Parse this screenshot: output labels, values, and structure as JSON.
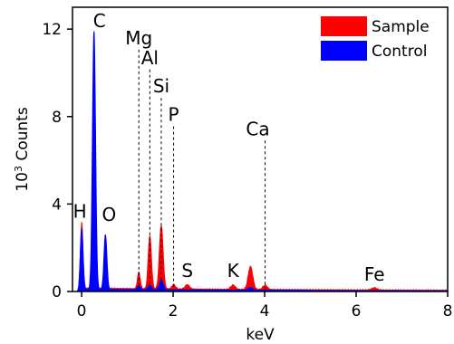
{
  "chart_data": {
    "type": "area",
    "xlabel": "keV",
    "ylabel_base": "10",
    "ylabel_exp": "3",
    "ylabel_rest": " Counts",
    "xlim": [
      -0.2,
      8
    ],
    "ylim": [
      0,
      13
    ],
    "x_ticks": [
      0,
      2,
      4,
      6,
      8
    ],
    "y_ticks": [
      0,
      4,
      8,
      12
    ],
    "grid": false,
    "legend_position": "top-right",
    "series": [
      {
        "name": "Sample",
        "color": "#ff0000",
        "peaks": [
          {
            "x": 0.0,
            "y": 3.0,
            "w": 0.028
          },
          {
            "x": 0.27,
            "y": 0.9,
            "w": 0.03
          },
          {
            "x": 0.52,
            "y": 1.3,
            "w": 0.03
          },
          {
            "x": 1.25,
            "y": 0.75,
            "w": 0.03
          },
          {
            "x": 1.49,
            "y": 2.4,
            "w": 0.035
          },
          {
            "x": 1.74,
            "y": 2.9,
            "w": 0.04
          },
          {
            "x": 2.01,
            "y": 0.2,
            "w": 0.04
          },
          {
            "x": 2.31,
            "y": 0.2,
            "w": 0.05
          },
          {
            "x": 3.31,
            "y": 0.2,
            "w": 0.05
          },
          {
            "x": 3.69,
            "y": 1.05,
            "w": 0.05
          },
          {
            "x": 4.01,
            "y": 0.2,
            "w": 0.05
          },
          {
            "x": 6.4,
            "y": 0.1,
            "w": 0.06
          }
        ]
      },
      {
        "name": "Control",
        "color": "#0000ff",
        "peaks": [
          {
            "x": 0.0,
            "y": 2.8,
            "w": 0.03
          },
          {
            "x": 0.27,
            "y": 11.8,
            "w": 0.034
          },
          {
            "x": 0.52,
            "y": 2.5,
            "w": 0.032
          },
          {
            "x": 1.25,
            "y": 0.15,
            "w": 0.04
          },
          {
            "x": 1.49,
            "y": 0.2,
            "w": 0.04
          },
          {
            "x": 1.74,
            "y": 0.45,
            "w": 0.04
          },
          {
            "x": 3.69,
            "y": 0.12,
            "w": 0.05
          }
        ]
      }
    ],
    "element_labels": [
      {
        "text": "H",
        "x": 0.0,
        "line": false
      },
      {
        "text": "C",
        "x": 0.27,
        "line": false
      },
      {
        "text": "O",
        "x": 0.52,
        "line": false
      },
      {
        "text": "Mg",
        "x": 1.25,
        "line": true
      },
      {
        "text": "Al",
        "x": 1.49,
        "line": true
      },
      {
        "text": "Si",
        "x": 1.74,
        "line": true
      },
      {
        "text": "P",
        "x": 2.01,
        "line": true
      },
      {
        "text": "S",
        "x": 2.31,
        "line": false
      },
      {
        "text": "K",
        "x": 3.31,
        "line": false
      },
      {
        "text": "Ca",
        "x": 4.01,
        "line": true
      },
      {
        "text": "Fe",
        "x": 6.4,
        "line": false
      }
    ]
  }
}
